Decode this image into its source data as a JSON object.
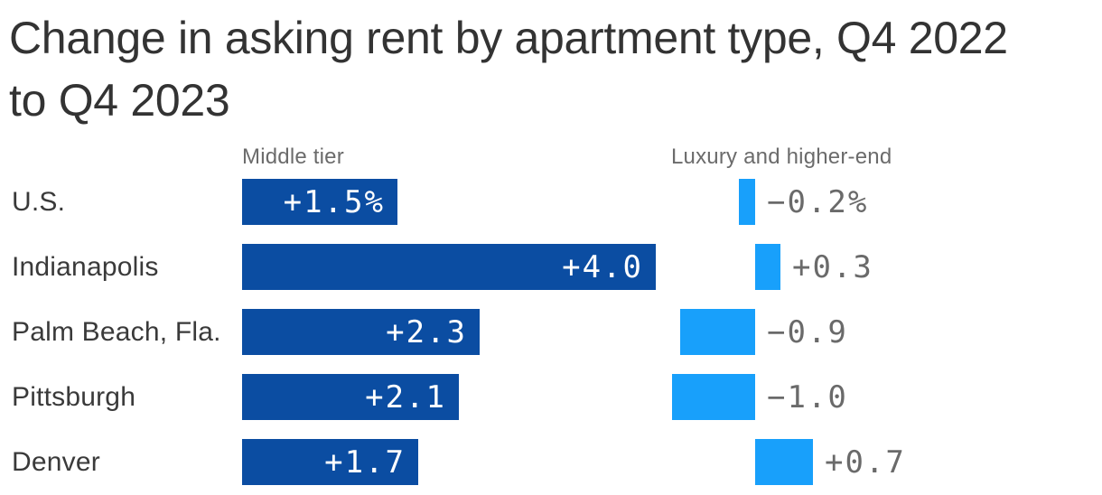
{
  "chart_data": {
    "type": "bar",
    "orientation": "horizontal",
    "title": "Change in asking rent by apartment type, Q4 2022 to Q4 2023",
    "title_lines": [
      "Change in asking rent by apartment type, Q4 2022",
      "to Q4 2023"
    ],
    "categories": [
      "U.S.",
      "Indianapolis",
      "Palm Beach, Fla.",
      "Pittsburgh",
      "Denver"
    ],
    "series": [
      {
        "name": "Middle tier",
        "color": "#0b4da2",
        "values": [
          1.5,
          4.0,
          2.3,
          2.1,
          1.7
        ],
        "labels": [
          "+1.5%",
          "+4.0",
          "+2.3",
          "+2.1",
          "+1.7"
        ],
        "label_position": "inside-end"
      },
      {
        "name": "Luxury and higher-end",
        "color": "#18a0fb",
        "values": [
          -0.2,
          0.3,
          -0.9,
          -1.0,
          0.7
        ],
        "labels": [
          "−0.2%",
          "+0.3",
          "−0.9",
          "−1.0",
          "+0.7"
        ],
        "label_position": "outside-right"
      }
    ],
    "value_unit": "%",
    "legend_position": "column-headers-top",
    "grid": false,
    "colors": {
      "background": "#ffffff",
      "title_text": "#333333",
      "category_text": "#3a3a3a",
      "header_text": "#6b6b6b",
      "bar_value_text_inside": "#ffffff",
      "bar_value_text_outside": "#6a6a6a"
    }
  }
}
